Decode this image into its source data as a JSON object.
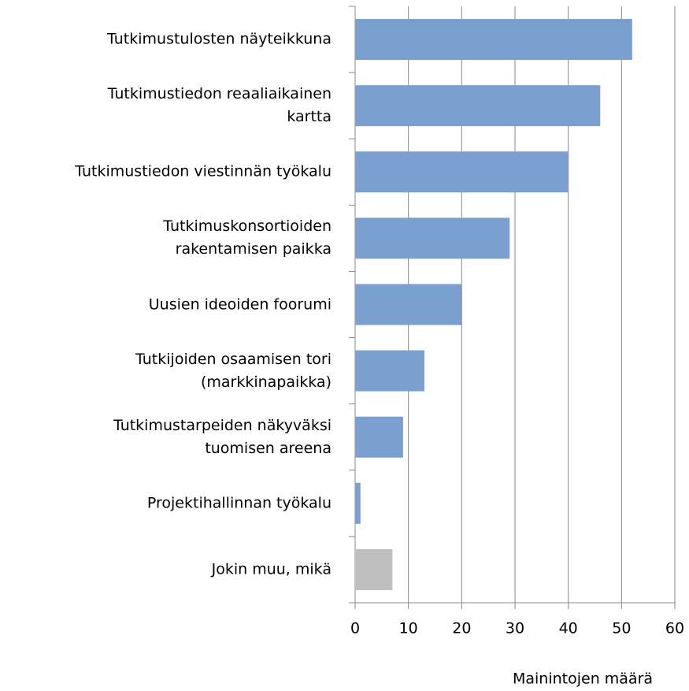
{
  "chart_data": {
    "type": "bar",
    "orientation": "horizontal",
    "categories": [
      "Tutkimustulosten näyteikkuna",
      "Tutkimustiedon reaaliaikainen\nkartta",
      "Tutkimustiedon viestinnän työkalu",
      "Tutkimuskonsortioiden\nrakentamisen paikka",
      "Uusien ideoiden foorumi",
      "Tutkijoiden osaamisen tori\n(markkinapaikka)",
      "Tutkimustarpeiden näkyväksi\ntuomisen areena",
      "Projektihallinnan työkalu",
      "Jokin muu, mikä"
    ],
    "values": [
      52,
      46,
      40,
      29,
      20,
      13,
      9,
      1,
      7
    ],
    "colors": [
      "#7ba0cf",
      "#7ba0cf",
      "#7ba0cf",
      "#7ba0cf",
      "#7ba0cf",
      "#7ba0cf",
      "#7ba0cf",
      "#7ba0cf",
      "#bfbfbf"
    ],
    "xlabel": "Mainintojen määrä",
    "xlim": [
      0,
      60
    ],
    "xticks": [
      0,
      10,
      20,
      30,
      40,
      50,
      60
    ],
    "grid": true
  }
}
